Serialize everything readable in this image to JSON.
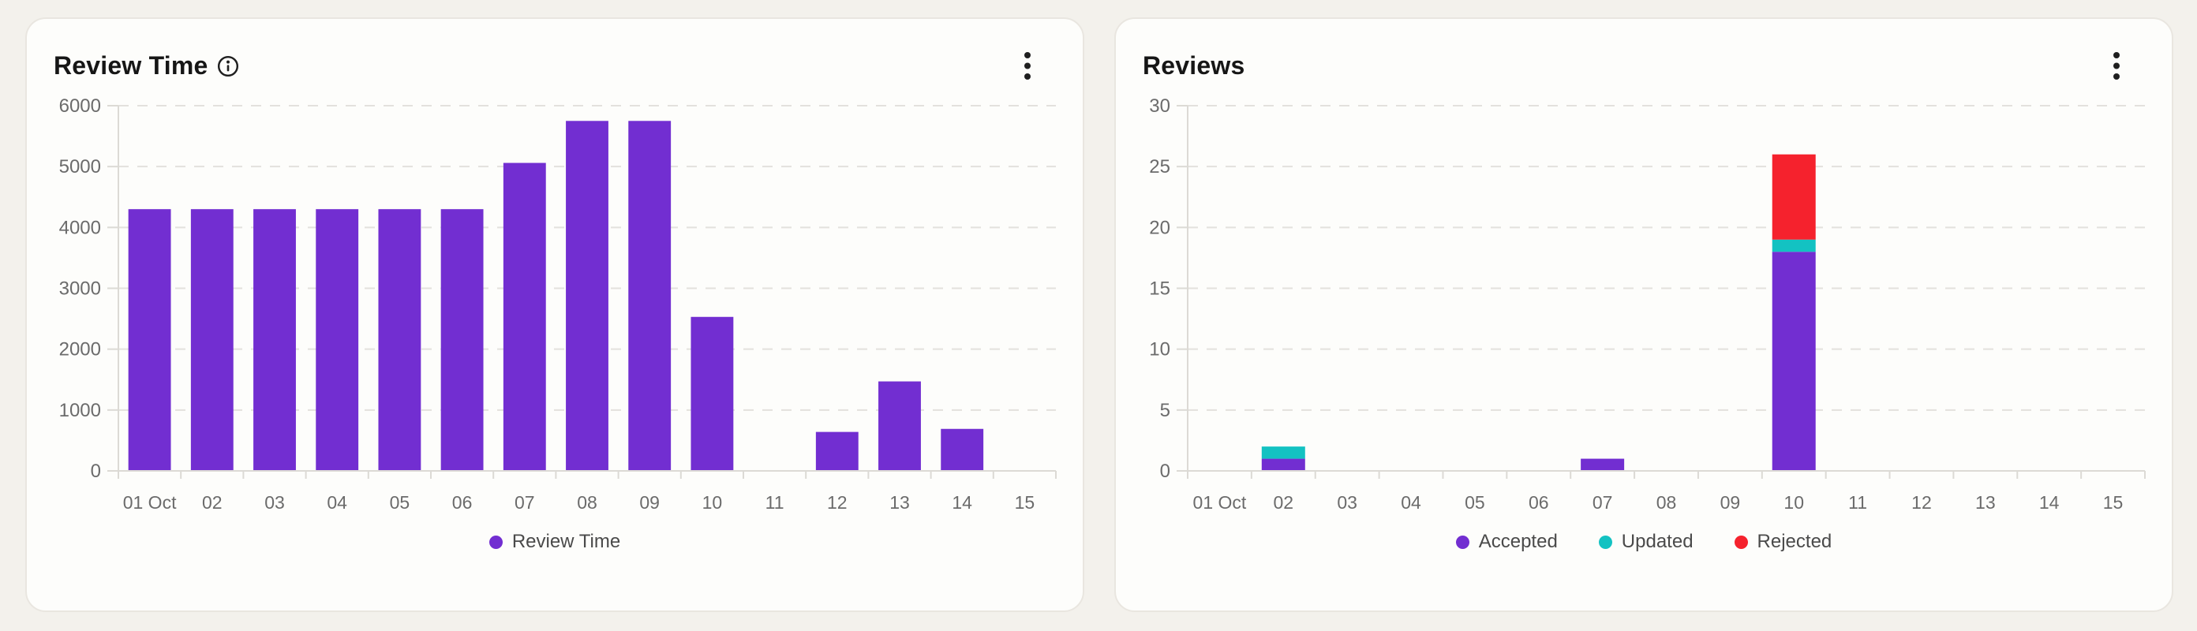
{
  "page": {
    "background": "#f3f1ec",
    "card_background": "#fdfdfb",
    "card_border": "#e9e6e0"
  },
  "cards": [
    {
      "title": "Review Time",
      "info_icon": "info-circle-icon",
      "menu_icon": "kebab-menu-icon"
    },
    {
      "title": "Reviews",
      "menu_icon": "kebab-menu-icon"
    }
  ],
  "chart_data": [
    {
      "id": "review-time",
      "type": "bar",
      "title": "Review Time",
      "stacked": false,
      "categories": [
        "01 Oct",
        "02",
        "03",
        "04",
        "05",
        "06",
        "07",
        "08",
        "09",
        "10",
        "11",
        "12",
        "13",
        "14",
        "15"
      ],
      "series": [
        {
          "name": "Review Time",
          "color": "#722ed1",
          "values": [
            4300,
            4300,
            4300,
            4300,
            4300,
            4300,
            5060,
            5750,
            5750,
            2530,
            0,
            640,
            1470,
            690,
            0
          ]
        }
      ],
      "xlabel": "",
      "ylabel": "",
      "ylim": [
        0,
        6000
      ],
      "yticks": [
        0,
        1000,
        2000,
        3000,
        4000,
        5000,
        6000
      ],
      "grid": "horizontal-dashed",
      "legend_position": "bottom"
    },
    {
      "id": "reviews",
      "type": "bar",
      "title": "Reviews",
      "stacked": true,
      "categories": [
        "01 Oct",
        "02",
        "03",
        "04",
        "05",
        "06",
        "07",
        "08",
        "09",
        "10",
        "11",
        "12",
        "13",
        "14",
        "15"
      ],
      "series": [
        {
          "name": "Accepted",
          "color": "#722ed1",
          "values": [
            0,
            1,
            0,
            0,
            0,
            0,
            1,
            0,
            0,
            18,
            0,
            0,
            0,
            0,
            0
          ]
        },
        {
          "name": "Updated",
          "color": "#13c2c2",
          "values": [
            0,
            1,
            0,
            0,
            0,
            0,
            0,
            0,
            0,
            1,
            0,
            0,
            0,
            0,
            0
          ]
        },
        {
          "name": "Rejected",
          "color": "#f5222d",
          "values": [
            0,
            0,
            0,
            0,
            0,
            0,
            0,
            0,
            0,
            7,
            0,
            0,
            0,
            0,
            0
          ]
        }
      ],
      "xlabel": "",
      "ylabel": "",
      "ylim": [
        0,
        30
      ],
      "yticks": [
        0,
        5,
        10,
        15,
        20,
        25,
        30
      ],
      "grid": "horizontal-dashed",
      "legend_position": "bottom"
    }
  ],
  "style_tokens": {
    "grid_color": "#e3e1dd",
    "axis_color": "#dcdad5",
    "tick_label_color": "#6b6b6b",
    "legend_text_color": "#4a4a4a",
    "title_color": "#161616",
    "icon_color": "#1f1f1f"
  }
}
